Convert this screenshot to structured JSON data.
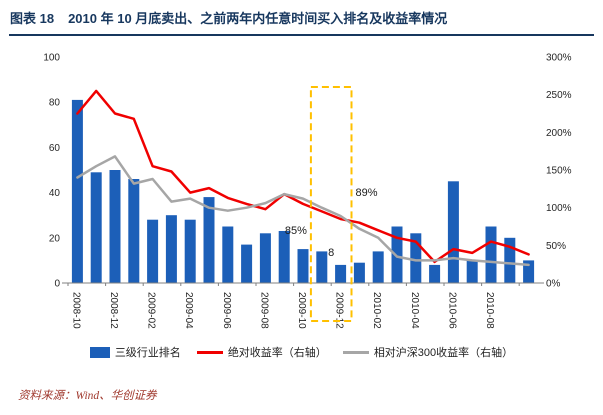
{
  "header": {
    "figure_label": "图表 18",
    "title": "2010 年 10 月底卖出、之前两年内任意时间买入排名及收益率情况"
  },
  "footer": {
    "source": "资料来源：Wind、华创证券"
  },
  "colors": {
    "title_navy": "#17375E",
    "bar_blue": "#1C5FB8",
    "line_red": "#F00000",
    "line_gray": "#A6A6A6",
    "highlight_gold": "#FFC000",
    "source_red": "#A0392E",
    "axis_text": "#262626"
  },
  "chart_data": {
    "type": "combo-bar-line",
    "categories": [
      "2008-10",
      "2008-11",
      "2008-12",
      "2009-01",
      "2009-02",
      "2009-03",
      "2009-04",
      "2009-05",
      "2009-06",
      "2009-07",
      "2009-08",
      "2009-09",
      "2009-10",
      "2009-11",
      "2009-12",
      "2010-01",
      "2010-02",
      "2010-03",
      "2010-04",
      "2010-05",
      "2010-06",
      "2010-07",
      "2010-08",
      "2010-09",
      "2010-10"
    ],
    "x_tick_labels": [
      "2008-10",
      "2008-12",
      "2009-02",
      "2009-04",
      "2009-06",
      "2009-08",
      "2009-10",
      "2009-12",
      "2010-02",
      "2010-04",
      "2010-06",
      "2010-08"
    ],
    "bar_series": {
      "name": "三级行业排名",
      "axis": "left",
      "color": "#1C5FB8",
      "values": [
        81,
        49,
        50,
        46,
        28,
        30,
        28,
        38,
        25,
        17,
        22,
        23,
        15,
        14,
        8,
        9,
        14,
        25,
        22,
        8,
        45,
        10,
        25,
        20,
        10
      ]
    },
    "line_series": [
      {
        "name": "绝对收益率（右轴）",
        "axis": "right",
        "color": "#F00000",
        "values": [
          225,
          255,
          225,
          218,
          155,
          148,
          120,
          126,
          113,
          105,
          98,
          118,
          105,
          95,
          85,
          80,
          70,
          60,
          55,
          28,
          45,
          40,
          55,
          48,
          38
        ]
      },
      {
        "name": "相对沪深300收益率（右轴）",
        "axis": "right",
        "color": "#A6A6A6",
        "values": [
          140,
          155,
          168,
          132,
          138,
          108,
          112,
          100,
          96,
          100,
          106,
          118,
          112,
          100,
          89,
          72,
          60,
          35,
          30,
          30,
          33,
          30,
          28,
          26,
          24
        ]
      }
    ],
    "left_axis": {
      "min": 0,
      "max": 100,
      "tick_labels": [
        "0",
        "20",
        "40",
        "60",
        "80",
        "100"
      ]
    },
    "right_axis": {
      "min": 0,
      "max": 300,
      "tick_labels": [
        "0%",
        "50%",
        "100%",
        "150%",
        "200%",
        "250%",
        "300%"
      ]
    },
    "annotations": {
      "highlight_box": {
        "from": "2009-11",
        "to": "2009-12"
      },
      "label_red_value": "85%",
      "label_gray_value": "89%",
      "label_bar_value": "8"
    },
    "legend_position": "bottom",
    "grid": false
  }
}
